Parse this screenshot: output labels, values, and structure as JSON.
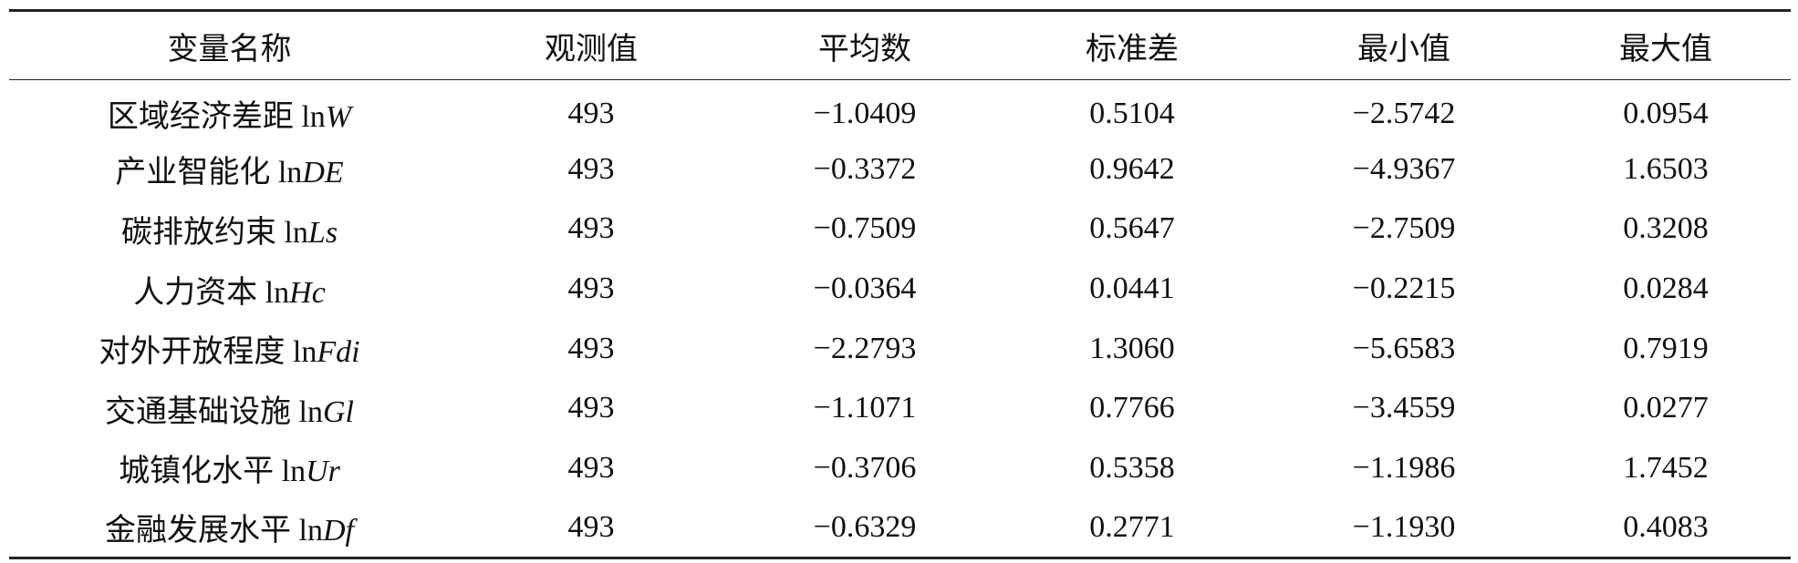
{
  "table": {
    "header": [
      "变量名称",
      "观测值",
      "平均数",
      "标准差",
      "最小值",
      "最大值"
    ],
    "rows": [
      [
        {
          "name": "区域经济差距 ln",
          "symbol": "W"
        },
        493,
        "−1.0409",
        "0.5104",
        "−2.5742",
        "0.0954"
      ],
      [
        {
          "name": "产业智能化 ln",
          "symbol": "DE"
        },
        493,
        "−0.3372",
        "0.9642",
        "−4.9367",
        "1.6503"
      ],
      [
        {
          "name": "碳排放约束 ln",
          "symbol": "Ls"
        },
        493,
        "−0.7509",
        "0.5647",
        "−2.7509",
        "0.3208"
      ],
      [
        {
          "name": "人力资本 ln",
          "symbol": "Hc"
        },
        493,
        "−0.0364",
        "0.0441",
        "−0.2215",
        "0.0284"
      ],
      [
        {
          "name": "对外开放程度 ln",
          "symbol": "Fdi"
        },
        493,
        "−2.2793",
        "1.3060",
        "−5.6583",
        "0.7919"
      ],
      [
        {
          "name": "交通基础设施 ln",
          "symbol": "Gl"
        },
        493,
        "−1.1071",
        "0.7766",
        "−3.4559",
        "0.0277"
      ],
      [
        {
          "name": "城镇化水平 ln",
          "symbol": "Ur"
        },
        493,
        "−0.3706",
        "0.5358",
        "−1.1986",
        "1.7452"
      ],
      [
        {
          "name": "金融发展水平 ln",
          "symbol": "Df"
        },
        493,
        "−0.6329",
        "0.2771",
        "−1.1930",
        "0.4083"
      ]
    ]
  }
}
